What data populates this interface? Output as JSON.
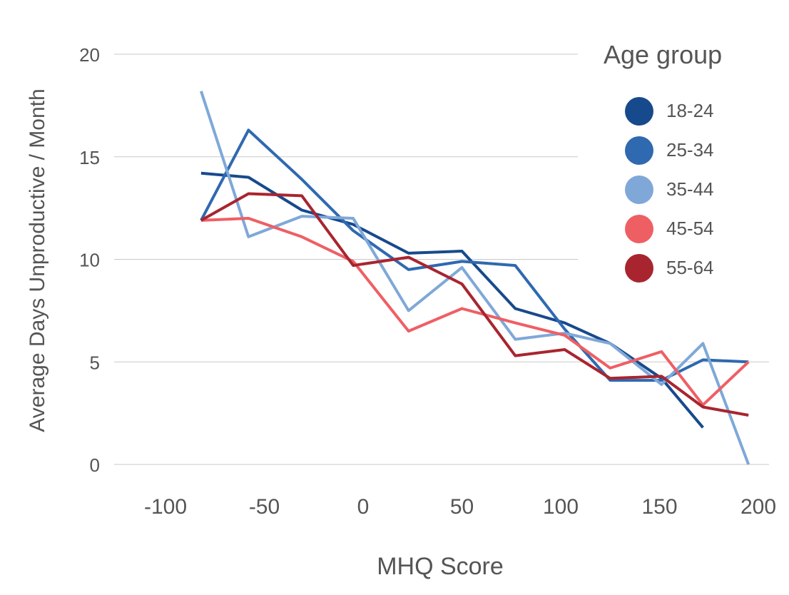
{
  "chart_data": {
    "type": "line",
    "xlabel": "MHQ Score",
    "ylabel": "Average Days Unproductive / Month",
    "xlim": [
      -120,
      225
    ],
    "ylim": [
      0,
      20
    ],
    "xticks": [
      -100,
      -50,
      0,
      50,
      100,
      150,
      200
    ],
    "yticks": [
      0,
      5,
      10,
      15,
      20
    ],
    "grid": "horizontal",
    "legend": {
      "title": "Age group",
      "position": "top-right"
    },
    "series": [
      {
        "name": "18-24",
        "color": "#174A8C",
        "points": [
          [
            -82,
            14.2
          ],
          [
            -58,
            14.0
          ],
          [
            -31,
            12.4
          ],
          [
            -5,
            11.7
          ],
          [
            23,
            10.3
          ],
          [
            50,
            10.4
          ],
          [
            77,
            7.6
          ],
          [
            102,
            6.9
          ],
          [
            125,
            5.9
          ],
          [
            151,
            4.2
          ],
          [
            172,
            1.8
          ]
        ]
      },
      {
        "name": "25-34",
        "color": "#2F69B0",
        "points": [
          [
            -82,
            11.9
          ],
          [
            -58,
            16.3
          ],
          [
            -31,
            13.9
          ],
          [
            -5,
            11.4
          ],
          [
            23,
            9.5
          ],
          [
            50,
            9.9
          ],
          [
            77,
            9.7
          ],
          [
            102,
            6.6
          ],
          [
            125,
            4.1
          ],
          [
            151,
            4.1
          ],
          [
            172,
            5.1
          ],
          [
            195,
            5.0
          ]
        ]
      },
      {
        "name": "35-44",
        "color": "#7FA8D8",
        "points": [
          [
            -82,
            18.2
          ],
          [
            -58,
            11.1
          ],
          [
            -31,
            12.1
          ],
          [
            -5,
            12.0
          ],
          [
            23,
            7.5
          ],
          [
            50,
            9.6
          ],
          [
            77,
            6.1
          ],
          [
            102,
            6.4
          ],
          [
            125,
            5.9
          ],
          [
            151,
            3.9
          ],
          [
            172,
            5.9
          ],
          [
            195,
            0.0
          ]
        ]
      },
      {
        "name": "45-54",
        "color": "#EE5F64",
        "points": [
          [
            -82,
            11.9
          ],
          [
            -58,
            12.0
          ],
          [
            -31,
            11.1
          ],
          [
            -5,
            9.9
          ],
          [
            23,
            6.5
          ],
          [
            50,
            7.6
          ],
          [
            77,
            6.9
          ],
          [
            102,
            6.3
          ],
          [
            125,
            4.7
          ],
          [
            151,
            5.5
          ],
          [
            172,
            2.9
          ],
          [
            195,
            5.0
          ]
        ]
      },
      {
        "name": "55-64",
        "color": "#A8252F",
        "points": [
          [
            -82,
            11.9
          ],
          [
            -58,
            13.2
          ],
          [
            -31,
            13.1
          ],
          [
            -5,
            9.7
          ],
          [
            23,
            10.1
          ],
          [
            50,
            8.8
          ],
          [
            77,
            5.3
          ],
          [
            102,
            5.6
          ],
          [
            125,
            4.2
          ],
          [
            151,
            4.3
          ],
          [
            172,
            2.8
          ],
          [
            195,
            2.4
          ]
        ]
      }
    ]
  }
}
